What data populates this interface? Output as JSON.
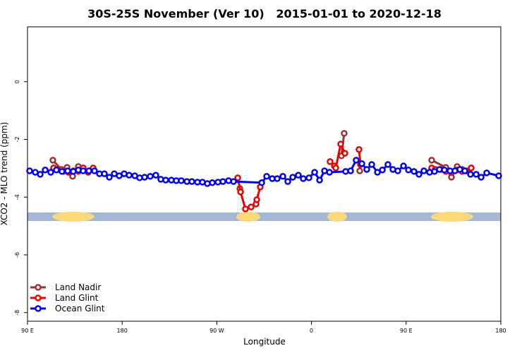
{
  "chart_data": {
    "type": "line",
    "title": "30S-25S November (Ver 10)   2015-01-01 to 2020-12-18",
    "x_label": "Longitude",
    "y_label": "XCO2 - MLO trend (ppm)",
    "xlim": [
      90,
      540
    ],
    "xticks": [
      {
        "value": 90,
        "label": "90 E"
      },
      180,
      {
        "value": 270,
        "label": "90 W"
      },
      {
        "value": 360,
        "label": "0"
      },
      {
        "value": 450,
        "label": "90 E"
      },
      {
        "value": 540,
        "label": "180"
      }
    ],
    "ylim": [
      -8.3,
      1.9
    ],
    "yticks": [
      0,
      -2,
      -4,
      -6,
      -8
    ],
    "legend": "bottom-left",
    "series": [
      {
        "name": "Land Nadir",
        "color": "#993333",
        "x": [
          114.1,
          122.2,
          127.6,
          132.9,
          138.3,
          null,
          291.9,
          null,
          388.5,
          391.1,
          null,
          405.9,
          null,
          474.3,
          487.7,
          493.1,
          498.5,
          503.2
        ],
        "values": [
          -2.72,
          -3.04,
          -2.97,
          -3.28,
          -2.94,
          null,
          -3.7,
          null,
          -2.57,
          -1.79,
          null,
          -3.09,
          null,
          -2.72,
          -2.97,
          -3.31,
          -2.94,
          -3.04
        ]
      },
      {
        "name": "Land Glint",
        "color": "#ee0000",
        "x": [
          114.8,
          118.8,
          124.2,
          128.9,
          133.6,
          138.3,
          143.0,
          147.7,
          152.4,
          null,
          289.9,
          292.6,
          297.2,
          302.6,
          307.3,
          308.0,
          311.3,
          null,
          377.7,
          381.8,
          383.1,
          387.8,
          391.8,
          null,
          405.2,
          406.6,
          null,
          474.3,
          477.7,
          483.0,
          487.7,
          493.1,
          498.5,
          503.2,
          507.2,
          511.9
        ],
        "values": [
          -2.99,
          -3.04,
          -3.11,
          -3.14,
          -3.09,
          -3.11,
          -2.99,
          -3.14,
          -2.99,
          null,
          -3.33,
          -3.82,
          -4.41,
          -4.34,
          -4.24,
          -4.09,
          -3.65,
          null,
          -2.77,
          -2.92,
          -2.99,
          -2.16,
          -2.48,
          null,
          -2.35,
          -2.87,
          null,
          -2.99,
          -3.04,
          -3.04,
          -3.11,
          -3.14,
          -3.06,
          -3.11,
          -3.09,
          -2.99
        ]
      },
      {
        "name": "Ocean Glint",
        "color": "#0000ee",
        "x": [
          92.0,
          97.4,
          102.1,
          106.8,
          112.1,
          117.5,
          122.8,
          128.2,
          133.5,
          138.3,
          142.9,
          148.4,
          153.7,
          158.4,
          163.1,
          167.8,
          172.5,
          177.2,
          181.9,
          186.6,
          192.0,
          196.6,
          201.3,
          206.7,
          212.0,
          216.7,
          221.4,
          226.8,
          231.5,
          236.2,
          241.6,
          246.3,
          251.6,
          256.3,
          261.0,
          265.7,
          271.1,
          275.8,
          281.2,
          285.9,
          312.7,
          317.4,
          322.7,
          327.4,
          332.8,
          337.5,
          342.2,
          347.5,
          352.2,
          357.6,
          363.0,
          367.7,
          372.4,
          377.1,
          392.5,
          397.2,
          402.5,
          407.9,
          412.6,
          417.3,
          422.7,
          427.4,
          432.7,
          437.4,
          442.1,
          447.5,
          452.2,
          457.5,
          462.2,
          466.9,
          472.3,
          477.0,
          481.7,
          486.4,
          491.8,
          496.4,
          501.1,
          505.8,
          511.2,
          516.6,
          521.3,
          526.6,
          538.0
        ],
        "values": [
          -3.09,
          -3.14,
          -3.21,
          -3.06,
          -3.14,
          -3.06,
          -3.11,
          -3.09,
          -3.11,
          -3.06,
          -3.09,
          -3.09,
          -3.09,
          -3.19,
          -3.19,
          -3.31,
          -3.19,
          -3.26,
          -3.19,
          -3.24,
          -3.26,
          -3.33,
          -3.31,
          -3.28,
          -3.24,
          -3.38,
          -3.41,
          -3.41,
          -3.43,
          -3.43,
          -3.46,
          -3.46,
          -3.48,
          -3.48,
          -3.53,
          -3.5,
          -3.48,
          -3.46,
          -3.43,
          -3.46,
          -3.5,
          -3.28,
          -3.36,
          -3.36,
          -3.28,
          -3.46,
          -3.31,
          -3.24,
          -3.36,
          -3.33,
          -3.14,
          -3.41,
          -3.09,
          -3.14,
          -3.11,
          -3.09,
          -2.72,
          -2.84,
          -3.04,
          -2.87,
          -3.14,
          -3.06,
          -2.87,
          -3.04,
          -3.09,
          -2.92,
          -3.06,
          -3.11,
          -3.21,
          -3.09,
          -3.14,
          -3.11,
          -3.04,
          -3.06,
          -3.09,
          -3.09,
          -3.04,
          -3.09,
          -3.21,
          -3.21,
          -3.31,
          -3.16,
          -3.26
        ]
      }
    ]
  }
}
